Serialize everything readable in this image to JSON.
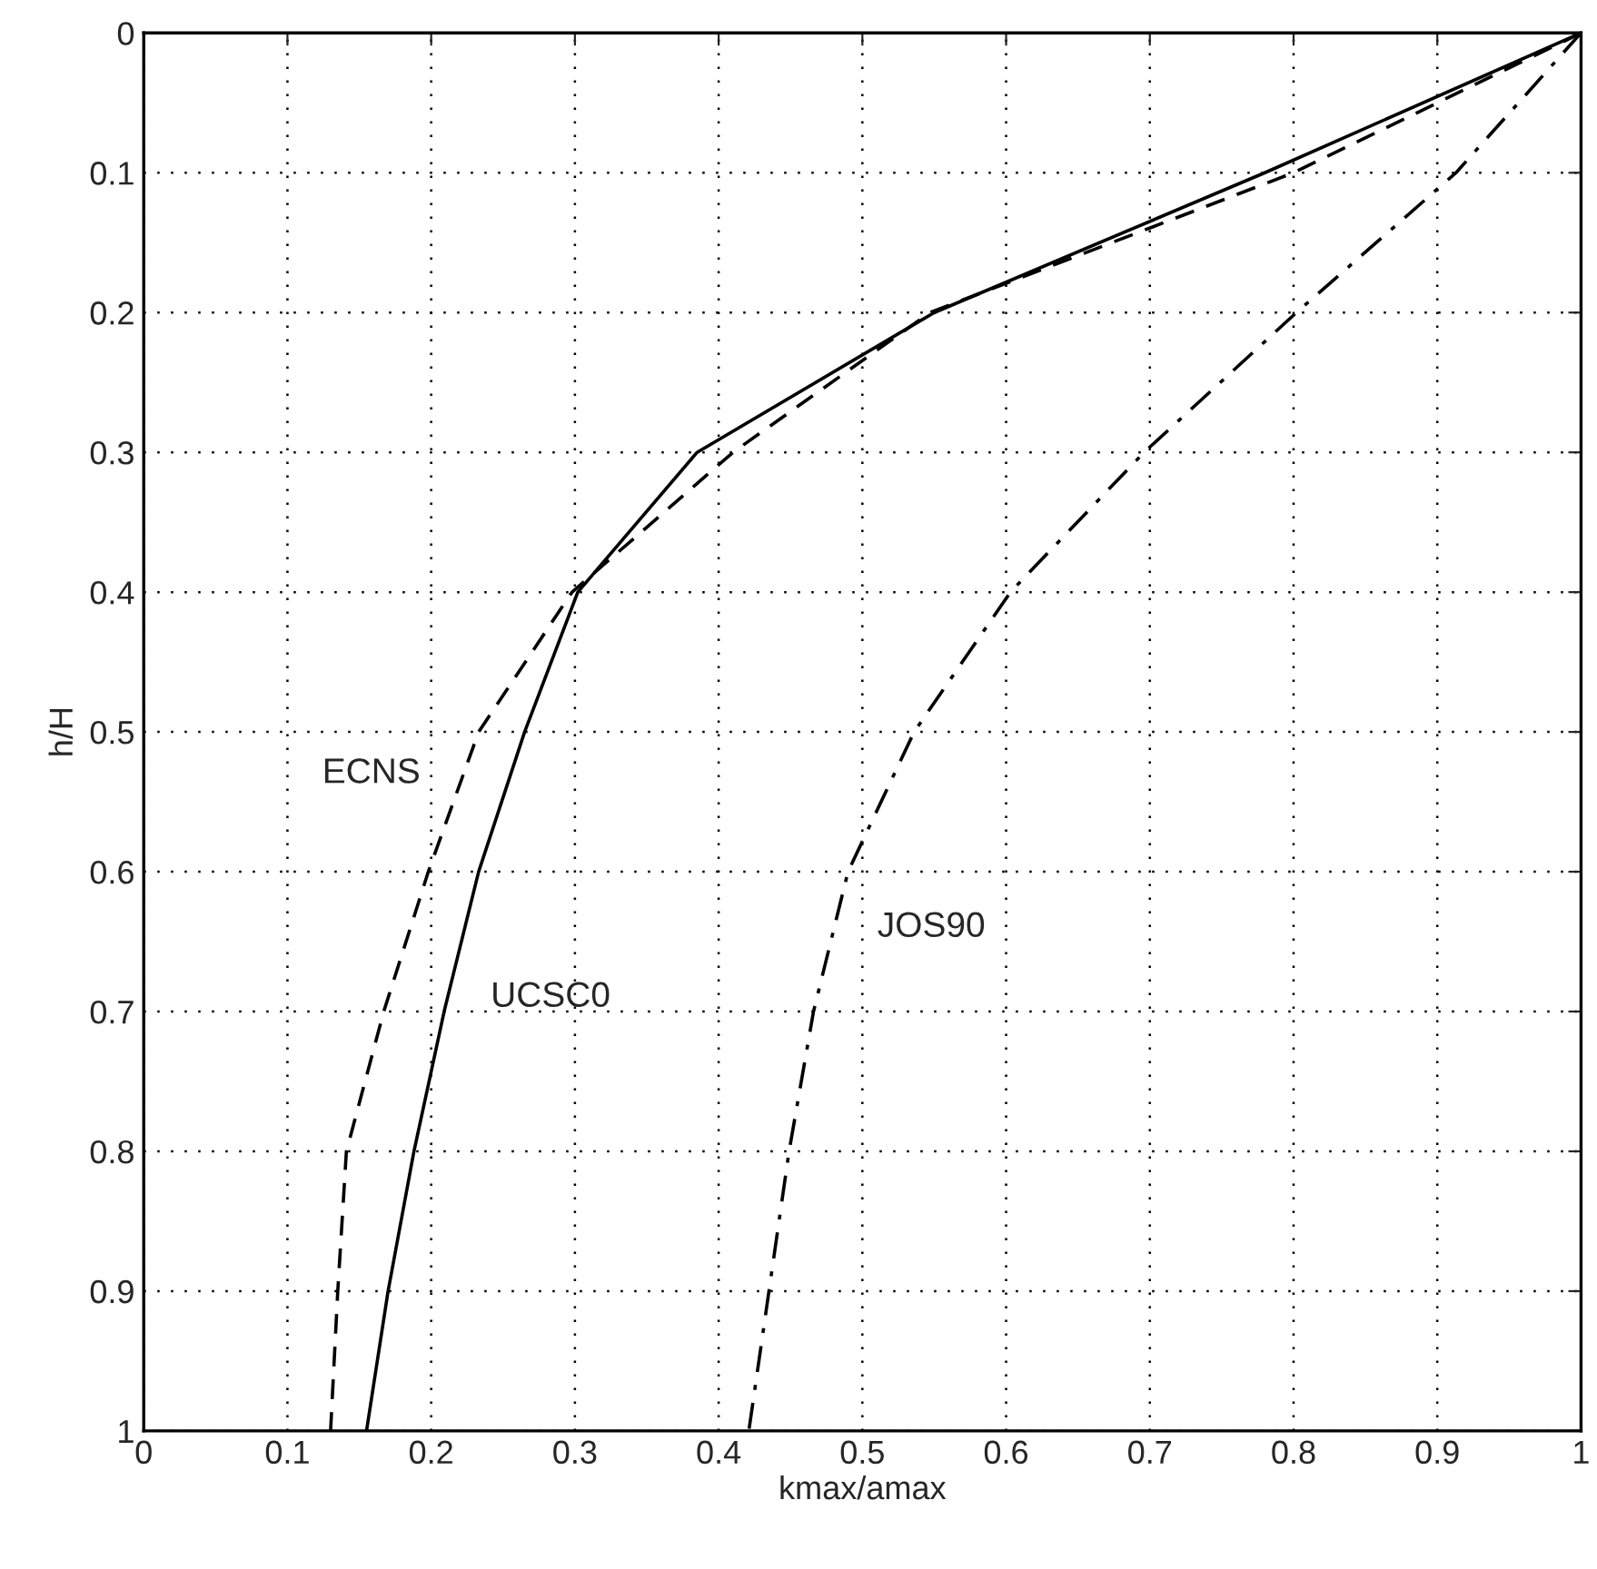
{
  "chart_data": {
    "type": "line",
    "xlabel": "kmax/amax",
    "ylabel": "h/H",
    "xlim": [
      0,
      1
    ],
    "ylim": [
      1,
      0
    ],
    "xticks": [
      0,
      0.1,
      0.2,
      0.3,
      0.4,
      0.5,
      0.6,
      0.7,
      0.8,
      0.9,
      1
    ],
    "yticks": [
      0,
      0.1,
      0.2,
      0.3,
      0.4,
      0.5,
      0.6,
      0.7,
      0.8,
      0.9,
      1
    ],
    "grid": true,
    "series": [
      {
        "name": "UCSC0",
        "color": "#000000",
        "line_style": "solid",
        "x": [
          1,
          0.78,
          0.55,
          0.385,
          0.302,
          0.265,
          0.233,
          0.209,
          0.188,
          0.17,
          0.155
        ],
        "values": [
          0,
          0.1,
          0.2,
          0.3,
          0.4,
          0.5,
          0.6,
          0.7,
          0.8,
          0.9,
          1
        ]
      },
      {
        "name": "ECNS",
        "color": "#000000",
        "line_style": "dashed",
        "x": [
          1,
          0.8,
          0.547,
          0.41,
          0.298,
          0.233,
          0.198,
          0.167,
          0.141,
          0.135,
          0.13
        ],
        "values": [
          0,
          0.1,
          0.2,
          0.3,
          0.4,
          0.5,
          0.6,
          0.7,
          0.8,
          0.9,
          1
        ]
      },
      {
        "name": "JOS90",
        "color": "#000000",
        "line_style": "dashdot",
        "x": [
          1,
          0.913,
          0.802,
          0.696,
          0.603,
          0.536,
          0.49,
          0.466,
          0.449,
          0.435,
          0.421
        ],
        "values": [
          0,
          0.1,
          0.2,
          0.3,
          0.4,
          0.5,
          0.6,
          0.7,
          0.8,
          0.9,
          1
        ]
      }
    ]
  }
}
